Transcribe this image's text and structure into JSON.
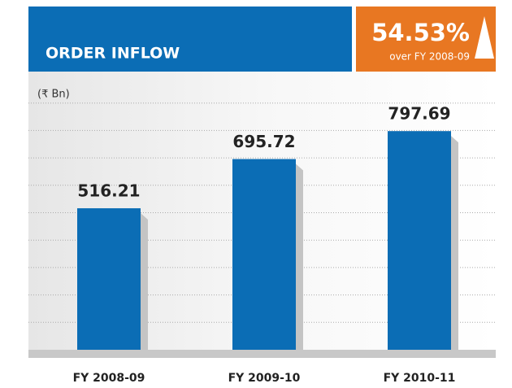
{
  "chart_data": {
    "type": "bar",
    "title": "ORDER INFLOW",
    "annotations": [
      "54.53%",
      "over FY 2008-09"
    ],
    "y_unit": "(₹ Bn)",
    "categories": [
      "FY 2008-09",
      "FY 2009-10",
      "FY 2010-11"
    ],
    "values": [
      516.21,
      695.72,
      797.69
    ],
    "color": "#0b6db5",
    "ylim": [
      0,
      1000
    ]
  }
}
